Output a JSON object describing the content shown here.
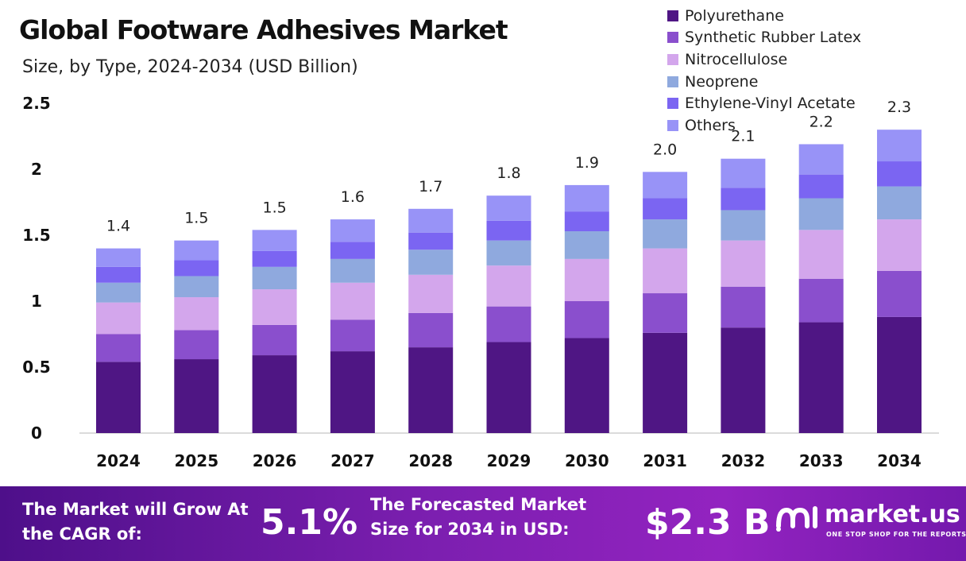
{
  "chart_data": {
    "type": "bar",
    "stacked": true,
    "title": "Global Footware Adhesives Market",
    "subtitle": "Size, by Type, 2024-2034 (USD Billion)",
    "categories": [
      "2024",
      "2025",
      "2026",
      "2027",
      "2028",
      "2029",
      "2030",
      "2031",
      "2032",
      "2033",
      "2034"
    ],
    "ylim": [
      0,
      2.5
    ],
    "yticks": [
      "0",
      "0.5",
      "1",
      "1.5",
      "2",
      "2.5"
    ],
    "legend_position": "top-right",
    "grid": false,
    "totals": [
      "1.4",
      "1.5",
      "1.5",
      "1.6",
      "1.7",
      "1.8",
      "1.9",
      "2.0",
      "2.1",
      "2.2",
      "2.3"
    ],
    "series": [
      {
        "name": "Polyurethane",
        "color": "#4f1684",
        "values": [
          0.54,
          0.56,
          0.59,
          0.62,
          0.65,
          0.69,
          0.72,
          0.76,
          0.8,
          0.84,
          0.88
        ]
      },
      {
        "name": "Synthetic Rubber Latex",
        "color": "#8a4fcd",
        "values": [
          0.21,
          0.22,
          0.23,
          0.24,
          0.26,
          0.27,
          0.28,
          0.3,
          0.31,
          0.33,
          0.35
        ]
      },
      {
        "name": "Nitrocellulose",
        "color": "#d3a6ec",
        "values": [
          0.24,
          0.25,
          0.27,
          0.28,
          0.29,
          0.31,
          0.32,
          0.34,
          0.35,
          0.37,
          0.39
        ]
      },
      {
        "name": "Neoprene",
        "color": "#8fa9de",
        "values": [
          0.15,
          0.16,
          0.17,
          0.18,
          0.19,
          0.19,
          0.21,
          0.22,
          0.23,
          0.24,
          0.25
        ]
      },
      {
        "name": "Ethylene-Vinyl Acetate",
        "color": "#7b65f2",
        "values": [
          0.12,
          0.12,
          0.12,
          0.13,
          0.13,
          0.15,
          0.15,
          0.16,
          0.17,
          0.18,
          0.19
        ]
      },
      {
        "name": "Others",
        "color": "#9893f7",
        "values": [
          0.14,
          0.15,
          0.16,
          0.17,
          0.18,
          0.19,
          0.2,
          0.2,
          0.22,
          0.23,
          0.24
        ]
      }
    ]
  },
  "footer": {
    "cagr_label": "The Market will Grow At the CAGR of:",
    "cagr_value": "5.1%",
    "size_label": "The Forecasted Market Size for 2034 in USD:",
    "size_value": "$2.3 B",
    "brand_name": "market.us",
    "brand_tagline": "ONE STOP SHOP FOR THE REPORTS",
    "brand_icon": "market-us-logo-icon"
  }
}
